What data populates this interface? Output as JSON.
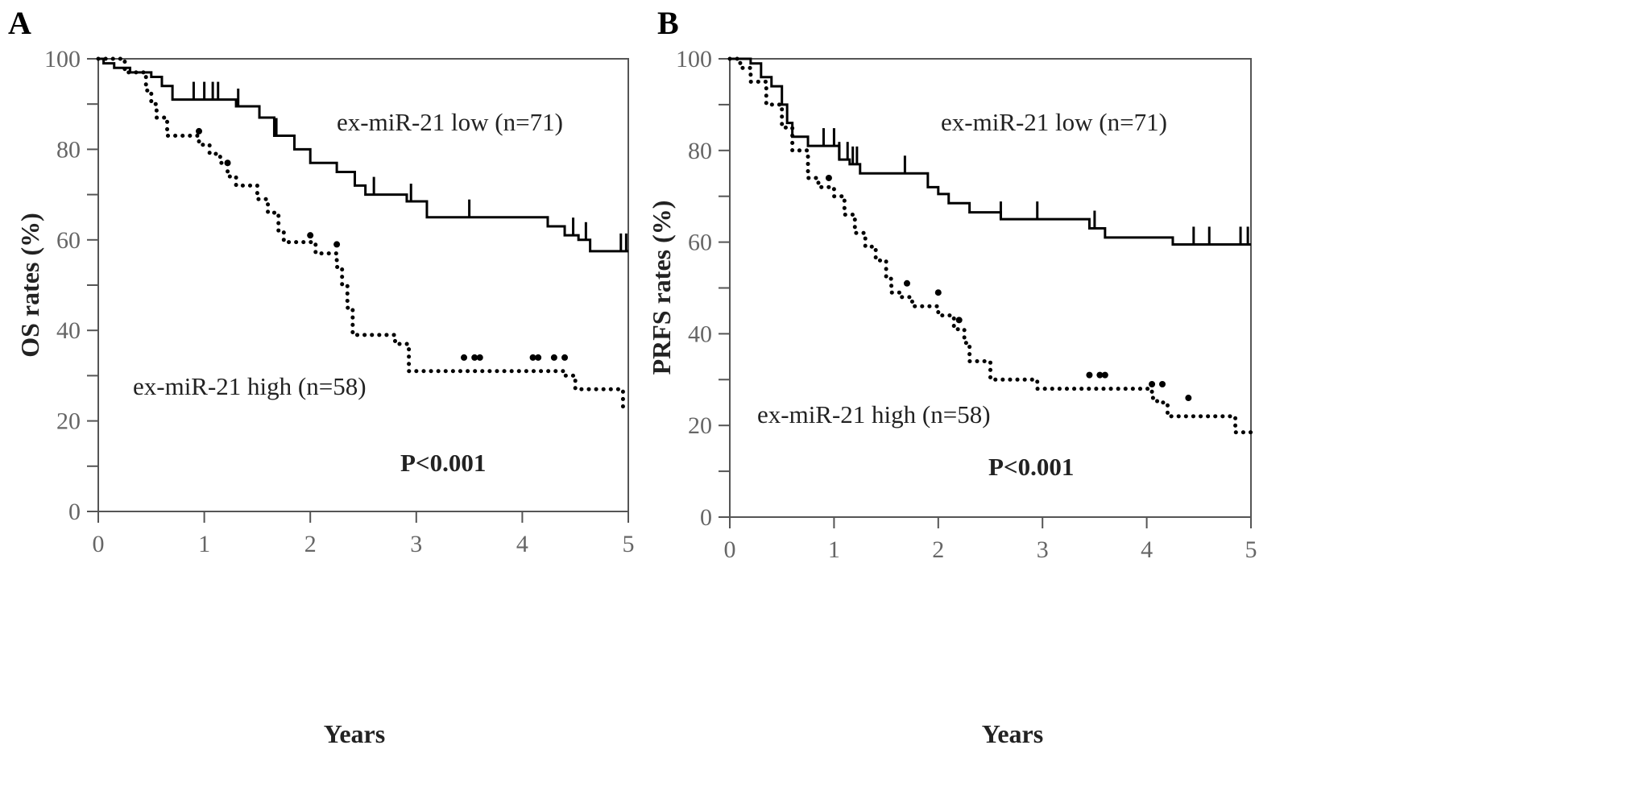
{
  "chart_data": [
    {
      "type": "line",
      "panel_label": "A",
      "xlabel": "Years",
      "ylabel": "OS rates (%)",
      "xlim": [
        0,
        5
      ],
      "ylim": [
        0,
        100
      ],
      "xticks": [
        "0",
        "1",
        "2",
        "3",
        "4",
        "5"
      ],
      "yticks": [
        "0",
        "20",
        "40",
        "60",
        "80",
        "100"
      ],
      "p_value": "P<0.001",
      "series": [
        {
          "name": "ex-miR-21 low (n=71)",
          "style": "solid",
          "steps": [
            [
              0,
              100
            ],
            [
              0.05,
              99
            ],
            [
              0.15,
              98
            ],
            [
              0.3,
              97
            ],
            [
              0.5,
              96
            ],
            [
              0.6,
              94
            ],
            [
              0.7,
              91
            ],
            [
              1.3,
              89.5
            ],
            [
              1.52,
              87
            ],
            [
              1.66,
              83
            ],
            [
              1.85,
              80
            ],
            [
              2.0,
              77
            ],
            [
              2.25,
              75
            ],
            [
              2.42,
              72
            ],
            [
              2.52,
              70
            ],
            [
              2.91,
              68.5
            ],
            [
              3.1,
              65
            ],
            [
              4.24,
              63
            ],
            [
              4.4,
              61
            ],
            [
              4.53,
              60
            ],
            [
              4.64,
              57.5
            ],
            [
              5.0,
              57.5
            ]
          ],
          "censored": [
            0.9,
            1.0,
            1.08,
            1.13,
            1.32,
            1.68,
            2.6,
            2.95,
            3.5,
            4.48,
            4.6,
            4.93,
            4.98
          ]
        },
        {
          "name": "ex-miR-21 high (n=58)",
          "style": "dotted",
          "steps": [
            [
              0,
              100
            ],
            [
              0.25,
              97
            ],
            [
              0.45,
              93
            ],
            [
              0.5,
              90
            ],
            [
              0.55,
              87
            ],
            [
              0.65,
              83
            ],
            [
              0.95,
              81
            ],
            [
              1.05,
              79
            ],
            [
              1.15,
              77
            ],
            [
              1.22,
              74
            ],
            [
              1.3,
              72
            ],
            [
              1.5,
              69
            ],
            [
              1.6,
              66
            ],
            [
              1.7,
              62
            ],
            [
              1.75,
              59.5
            ],
            [
              2.05,
              57
            ],
            [
              2.25,
              54
            ],
            [
              2.3,
              50
            ],
            [
              2.35,
              45
            ],
            [
              2.4,
              39
            ],
            [
              2.8,
              37
            ],
            [
              2.93,
              31
            ],
            [
              4.4,
              30
            ],
            [
              4.5,
              27
            ],
            [
              4.95,
              23
            ],
            [
              5.0,
              23
            ]
          ],
          "censored": [
            [
              0.95,
              84
            ],
            [
              1.22,
              77
            ],
            [
              2.0,
              61
            ],
            [
              2.25,
              59
            ],
            [
              3.45,
              34
            ],
            [
              3.55,
              34
            ],
            [
              3.6,
              34
            ],
            [
              4.1,
              34
            ],
            [
              4.15,
              34
            ],
            [
              4.3,
              34
            ],
            [
              4.4,
              34
            ]
          ]
        }
      ]
    },
    {
      "type": "line",
      "panel_label": "B",
      "xlabel": "Years",
      "ylabel": "PRFS rates (%)",
      "xlim": [
        0,
        5
      ],
      "ylim": [
        0,
        100
      ],
      "xticks": [
        "0",
        "1",
        "2",
        "3",
        "4",
        "5"
      ],
      "yticks": [
        "0",
        "20",
        "40",
        "60",
        "80",
        "100"
      ],
      "p_value": "P<0.001",
      "series": [
        {
          "name": "ex-miR-21 low (n=71)",
          "style": "solid",
          "steps": [
            [
              0,
              100
            ],
            [
              0.2,
              99
            ],
            [
              0.3,
              96
            ],
            [
              0.4,
              94
            ],
            [
              0.5,
              90
            ],
            [
              0.55,
              86
            ],
            [
              0.6,
              83
            ],
            [
              0.75,
              81
            ],
            [
              1.05,
              78
            ],
            [
              1.15,
              77
            ],
            [
              1.25,
              75
            ],
            [
              1.9,
              72
            ],
            [
              2.0,
              70.5
            ],
            [
              2.1,
              68.5
            ],
            [
              2.3,
              66.5
            ],
            [
              2.6,
              65
            ],
            [
              3.45,
              63
            ],
            [
              3.6,
              61
            ],
            [
              4.25,
              59.5
            ],
            [
              5.0,
              59.5
            ]
          ],
          "censored": [
            0.9,
            1.0,
            1.05,
            1.13,
            1.18,
            1.22,
            1.68,
            2.6,
            2.95,
            3.5,
            4.45,
            4.6,
            4.9,
            4.97
          ]
        },
        {
          "name": "ex-miR-21 high (n=58)",
          "style": "dotted",
          "steps": [
            [
              0,
              100
            ],
            [
              0.1,
              98
            ],
            [
              0.2,
              95
            ],
            [
              0.35,
              90
            ],
            [
              0.5,
              85
            ],
            [
              0.6,
              80
            ],
            [
              0.75,
              74
            ],
            [
              0.85,
              72
            ],
            [
              1.0,
              70
            ],
            [
              1.1,
              66
            ],
            [
              1.2,
              62
            ],
            [
              1.3,
              59
            ],
            [
              1.4,
              56
            ],
            [
              1.5,
              52
            ],
            [
              1.55,
              49
            ],
            [
              1.65,
              48
            ],
            [
              1.75,
              46
            ],
            [
              2.0,
              44
            ],
            [
              2.15,
              41
            ],
            [
              2.25,
              38
            ],
            [
              2.3,
              34
            ],
            [
              2.5,
              30
            ],
            [
              2.95,
              28
            ],
            [
              4.05,
              26
            ],
            [
              4.1,
              25
            ],
            [
              4.2,
              22
            ],
            [
              4.85,
              18.5
            ],
            [
              5.0,
              18.5
            ]
          ],
          "censored": [
            [
              0.95,
              74
            ],
            [
              1.7,
              51
            ],
            [
              2.0,
              49
            ],
            [
              2.2,
              43
            ],
            [
              3.45,
              31
            ],
            [
              3.55,
              31
            ],
            [
              3.6,
              31
            ],
            [
              4.05,
              29
            ],
            [
              4.15,
              29
            ],
            [
              4.4,
              26
            ]
          ]
        }
      ]
    }
  ]
}
